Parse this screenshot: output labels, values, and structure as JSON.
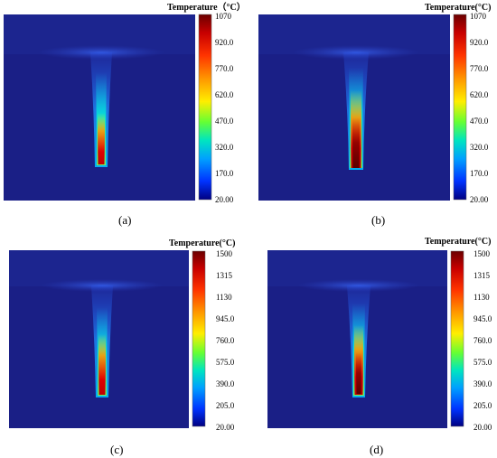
{
  "panels": [
    {
      "label": "(a)",
      "colorbar_title": "Temperature（°C）",
      "ticks": [
        "1070",
        "920.0",
        "770.0",
        "620.0",
        "470.0",
        "320.0",
        "170.0",
        "20.00"
      ],
      "flame_intensity": 0.9
    },
    {
      "label": "(b)",
      "colorbar_title": "Temperature(°C)",
      "ticks": [
        "1070",
        "920.0",
        "770.0",
        "620.0",
        "470.0",
        "320.0",
        "170.0",
        "20.00"
      ],
      "flame_intensity": 1.0
    },
    {
      "label": "(c)",
      "colorbar_title": "Temperature(°C)",
      "ticks": [
        "1500",
        "1315",
        "1130",
        "945.0",
        "760.0",
        "575.0",
        "390.0",
        "205.0",
        "20.00"
      ],
      "flame_intensity": 0.85
    },
    {
      "label": "(d)",
      "colorbar_title": "Temperature(°C)",
      "ticks": [
        "1500",
        "1315",
        "1130",
        "945.0",
        "760.0",
        "575.0",
        "390.0",
        "205.0",
        "20.00"
      ],
      "flame_intensity": 0.95
    }
  ],
  "colors": {
    "background_field": "#1a1f86",
    "colorbar_stops": [
      "#6b0000",
      "#c80000",
      "#ff3300",
      "#ff9900",
      "#ffee00",
      "#66ff33",
      "#00e5c0",
      "#00a0ff",
      "#0033ff",
      "#000080"
    ]
  }
}
